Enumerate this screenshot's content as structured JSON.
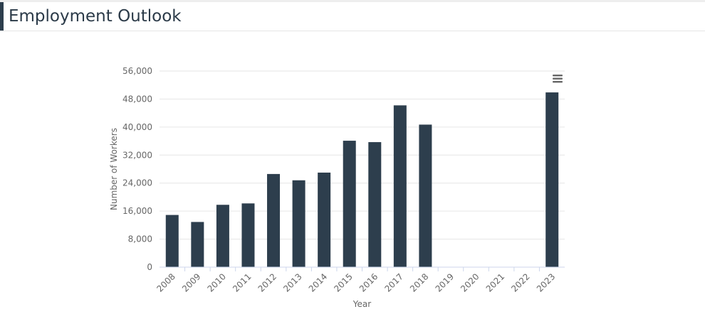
{
  "page": {
    "title": "Employment Outlook"
  },
  "chart_data": {
    "type": "bar",
    "title": "",
    "xlabel": "Year",
    "ylabel": "Number of Workers",
    "ylim": [
      0,
      56000
    ],
    "yticks": [
      0,
      8000,
      16000,
      24000,
      32000,
      40000,
      48000,
      56000
    ],
    "ytick_labels": [
      "0",
      "8,000",
      "16,000",
      "24,000",
      "32,000",
      "40,000",
      "48,000",
      "56,000"
    ],
    "categories": [
      "2008",
      "2009",
      "2010",
      "2011",
      "2012",
      "2013",
      "2014",
      "2015",
      "2016",
      "2017",
      "2018",
      "2019",
      "2020",
      "2021",
      "2022",
      "2023"
    ],
    "values": [
      14900,
      12900,
      17800,
      18200,
      26600,
      24800,
      27000,
      36100,
      35700,
      46200,
      40700,
      null,
      null,
      null,
      null,
      49900
    ],
    "bar_color": "#2d3e4d",
    "grid": true,
    "legend": "none"
  },
  "menu": {
    "icon": "hamburger-menu-icon"
  }
}
